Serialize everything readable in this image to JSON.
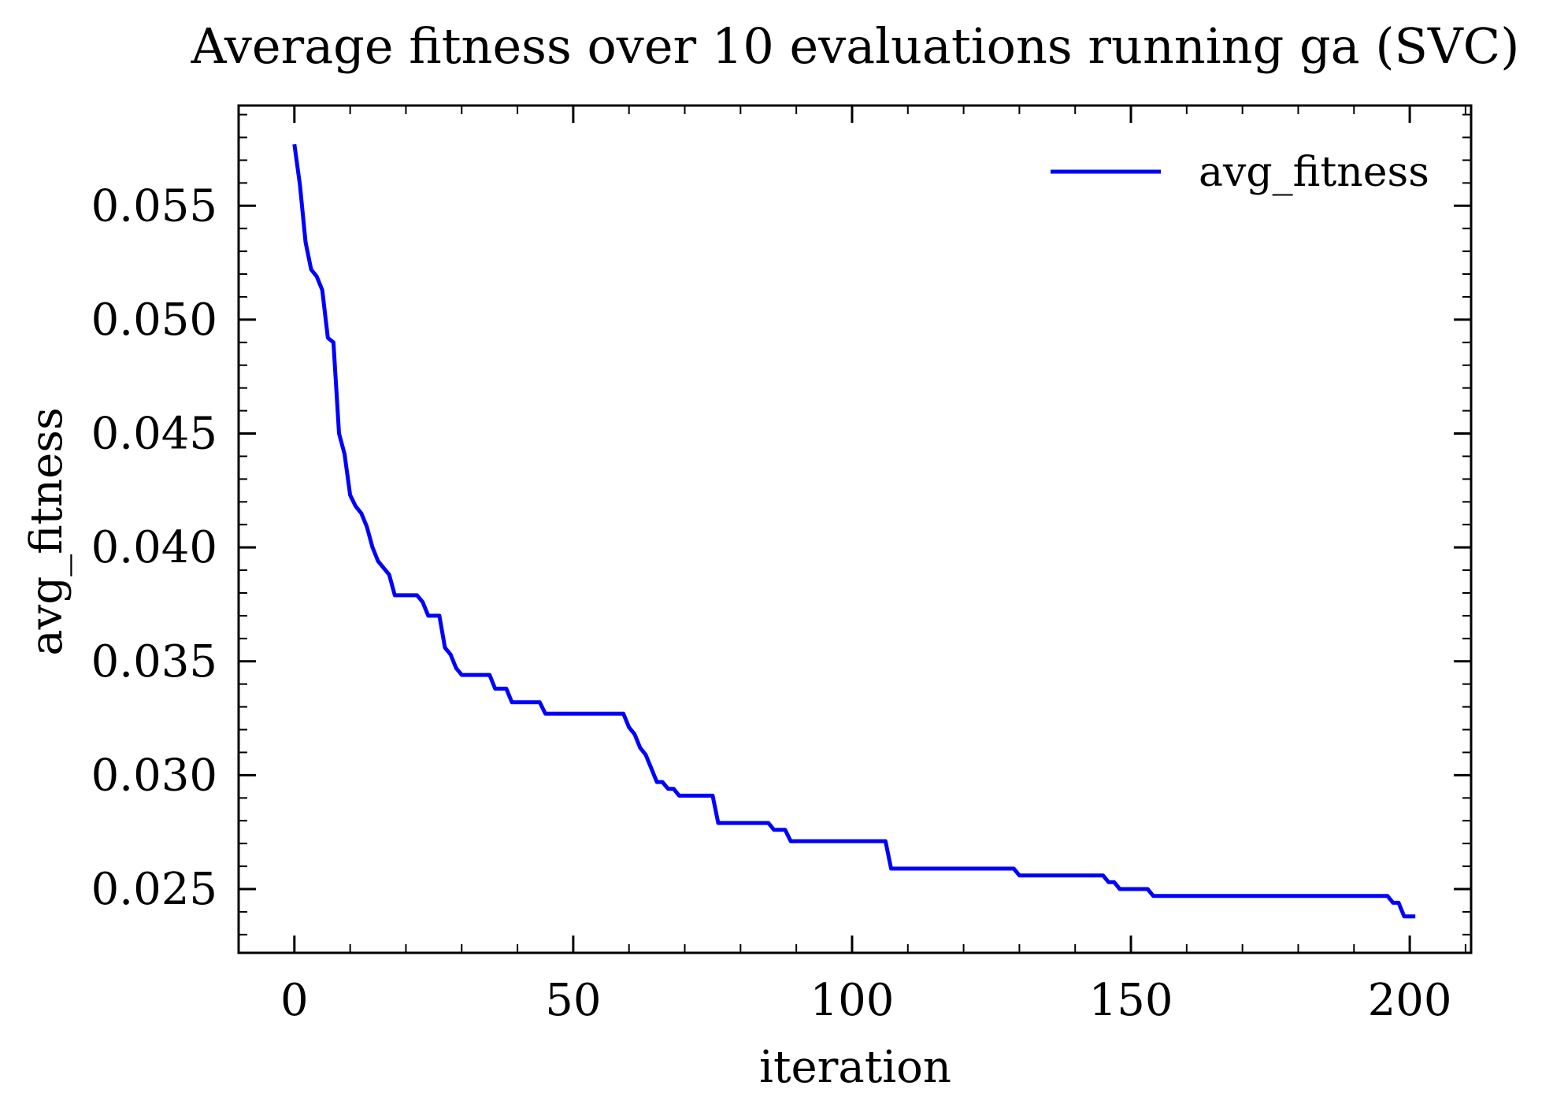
{
  "chart_data": {
    "type": "line",
    "title": "Average fitness over 10 evaluations running ga (SVC)",
    "xlabel": "iteration",
    "ylabel": "avg_fitness",
    "xlim": [
      -10,
      211
    ],
    "ylim": [
      0.0222,
      0.0594
    ],
    "xticks": [
      0,
      50,
      100,
      150,
      200
    ],
    "yticks": [
      0.025,
      0.03,
      0.035,
      0.04,
      0.045,
      0.05,
      0.055
    ],
    "xtick_labels": [
      "0",
      "50",
      "100",
      "150",
      "200"
    ],
    "ytick_labels": [
      "0.025",
      "0.030",
      "0.035",
      "0.040",
      "0.045",
      "0.050",
      "0.055"
    ],
    "x_minor_step": 10,
    "y_minor_step": 0.001,
    "grid": false,
    "legend_position": "top-right",
    "series": [
      {
        "name": "avg_fitness",
        "color": "#0000ff",
        "x": [
          0,
          1,
          2,
          3,
          4,
          5,
          6,
          7,
          8,
          9,
          10,
          11,
          12,
          13,
          14,
          15,
          16,
          17,
          18,
          19,
          20,
          21,
          22,
          23,
          24,
          25,
          26,
          27,
          28,
          29,
          30,
          31,
          32,
          33,
          34,
          35,
          36,
          37,
          38,
          39,
          40,
          41,
          42,
          43,
          44,
          45,
          46,
          47,
          48,
          49,
          50,
          51,
          52,
          53,
          54,
          55,
          56,
          57,
          58,
          59,
          60,
          61,
          62,
          63,
          64,
          65,
          66,
          67,
          68,
          69,
          70,
          71,
          72,
          73,
          74,
          75,
          76,
          77,
          78,
          79,
          80,
          81,
          82,
          83,
          84,
          85,
          86,
          87,
          88,
          89,
          90,
          95,
          100,
          105,
          106,
          107,
          110,
          115,
          120,
          125,
          129,
          130,
          131,
          135,
          140,
          145,
          146,
          147,
          148,
          150,
          153,
          154,
          155,
          160,
          170,
          180,
          190,
          196,
          197,
          198,
          199,
          200,
          201
        ],
        "y": [
          0.0577,
          0.0559,
          0.0534,
          0.0522,
          0.0519,
          0.0513,
          0.0492,
          0.049,
          0.045,
          0.0441,
          0.0423,
          0.0418,
          0.0415,
          0.0409,
          0.04,
          0.0394,
          0.0391,
          0.0388,
          0.0379,
          0.0379,
          0.0379,
          0.0379,
          0.0379,
          0.0376,
          0.037,
          0.037,
          0.037,
          0.0356,
          0.0353,
          0.0347,
          0.0344,
          0.0344,
          0.0344,
          0.0344,
          0.0344,
          0.0344,
          0.0338,
          0.0338,
          0.0338,
          0.0332,
          0.0332,
          0.0332,
          0.0332,
          0.0332,
          0.0332,
          0.0327,
          0.0327,
          0.0327,
          0.0327,
          0.0327,
          0.0327,
          0.0327,
          0.0327,
          0.0327,
          0.0327,
          0.0327,
          0.0327,
          0.0327,
          0.0327,
          0.0327,
          0.0321,
          0.0318,
          0.0312,
          0.0309,
          0.0303,
          0.0297,
          0.0297,
          0.0294,
          0.0294,
          0.0291,
          0.0291,
          0.0291,
          0.0291,
          0.0291,
          0.0291,
          0.0291,
          0.0279,
          0.0279,
          0.0279,
          0.0279,
          0.0279,
          0.0279,
          0.0279,
          0.0279,
          0.0279,
          0.0279,
          0.0276,
          0.0276,
          0.0276,
          0.0271,
          0.0271,
          0.0271,
          0.0271,
          0.0271,
          0.0271,
          0.0259,
          0.0259,
          0.0259,
          0.0259,
          0.0259,
          0.0259,
          0.0256,
          0.0256,
          0.0256,
          0.0256,
          0.0256,
          0.0253,
          0.0253,
          0.025,
          0.025,
          0.025,
          0.0247,
          0.0247,
          0.0247,
          0.0247,
          0.0247,
          0.0247,
          0.0247,
          0.0244,
          0.0244,
          0.0238,
          0.0238,
          0.0238
        ]
      }
    ]
  }
}
